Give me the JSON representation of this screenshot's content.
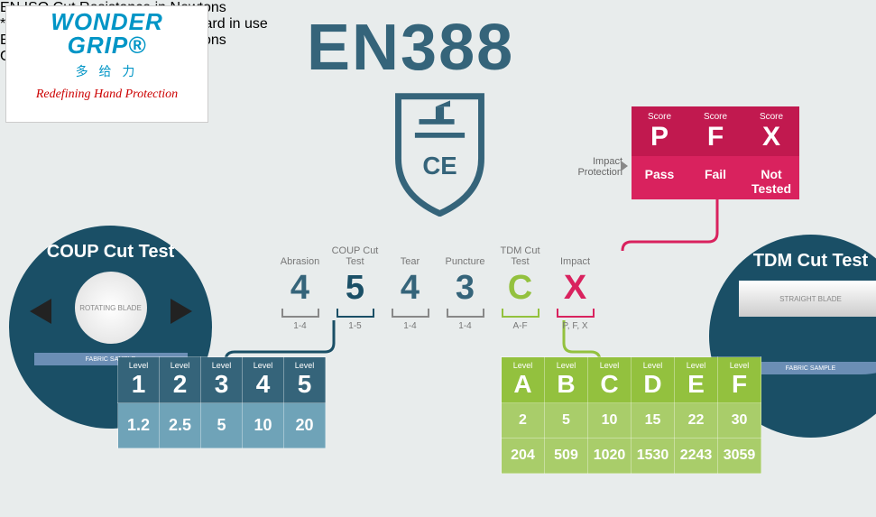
{
  "logo": {
    "line1": "WONDER",
    "line2": "GRIP®",
    "cn": "多 给 力",
    "tag": "Redefining Hand Protection"
  },
  "title": "EN388",
  "impact": {
    "label": "Impact Protection",
    "cols": [
      {
        "hdr": "Score",
        "big": "P",
        "txt": "Pass"
      },
      {
        "hdr": "Score",
        "big": "F",
        "txt": "Fail"
      },
      {
        "hdr": "Score",
        "big": "X",
        "txt": "Not Tested"
      }
    ]
  },
  "coupCircle": {
    "title": "COUP Cut Test",
    "blade": "ROTATING BLADE",
    "fabric": "FABRIC SAMPLE"
  },
  "tdmCircle": {
    "title": "TDM Cut Test",
    "blade": "STRAIGHT BLADE",
    "fabric": "FABRIC SAMPLE"
  },
  "ratings": [
    {
      "lbl": "Abrasion",
      "val": "4",
      "rng": "1-4",
      "cls": "teal"
    },
    {
      "lbl": "COUP Cut Test",
      "val": "5",
      "rng": "1-5",
      "cls": "coup"
    },
    {
      "lbl": "Tear",
      "val": "4",
      "rng": "1-4",
      "cls": "teal"
    },
    {
      "lbl": "Puncture",
      "val": "3",
      "rng": "1-4",
      "cls": "teal"
    },
    {
      "lbl": "TDM Cut Test",
      "val": "C",
      "rng": "A-F",
      "cls": "olive"
    },
    {
      "lbl": "Impact",
      "val": "X",
      "rng": "P, F, X",
      "cls": "pink"
    }
  ],
  "coupTbl": {
    "levels": [
      "1",
      "2",
      "3",
      "4",
      "5"
    ],
    "vals": [
      "1.2",
      "2.5",
      "5",
      "10",
      "20"
    ],
    "side": "EN ISO Cut Resistance in Newtons",
    "note": "* This is the traditional cut standard in use"
  },
  "tdmTbl": {
    "levels": [
      "A",
      "B",
      "C",
      "D",
      "E",
      "F"
    ],
    "r1": [
      "2",
      "5",
      "10",
      "15",
      "22",
      "30"
    ],
    "r2": [
      "204",
      "509",
      "1020",
      "1530",
      "2243",
      "3059"
    ],
    "s1": "EN ISO Cut Resistance in Newtons",
    "s2": "Gram Conversion"
  }
}
